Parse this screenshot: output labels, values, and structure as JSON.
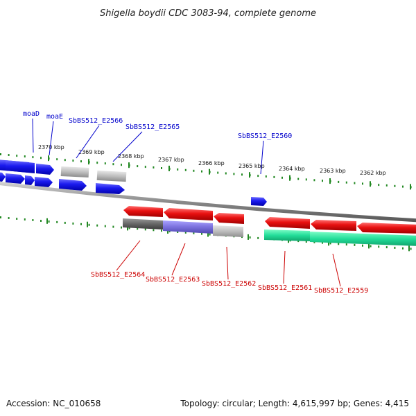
{
  "title": "Shigella boydii CDC 3083-94, complete genome",
  "footer": {
    "accession": "Accession: NC_010658",
    "summary": "Topology: circular; Length: 4,615,997 bp; Genes: 4,415"
  },
  "colors": {
    "forward_gene": "#1a1aee",
    "reverse_gene": "#e81010",
    "hypothetical": "#bbbbbb",
    "dark_gray": "#666666",
    "purple": "#7a70dd",
    "teal": "#22dd99",
    "backbone": "#888888",
    "ticks": "#228822",
    "label_top": "#0000cc",
    "label_bottom": "#cc0000"
  },
  "ticks": {
    "major_labels": [
      "2370 kbp",
      "2369 kbp",
      "2368 kbp",
      "2367 kbp",
      "2366 kbp",
      "2365 kbp",
      "2364 kbp",
      "2363 kbp",
      "2362 kbp"
    ]
  },
  "gene_labels": {
    "top": [
      "moaD",
      "moaE",
      "SbBS512_E2566",
      "SbBS512_E2565",
      "SbBS512_E2560"
    ],
    "bottom": [
      "SbBS512_E2564",
      "SbBS512_E2563",
      "SbBS512_E2562",
      "SbBS512_E2561",
      "SbBS512_E2559"
    ]
  }
}
